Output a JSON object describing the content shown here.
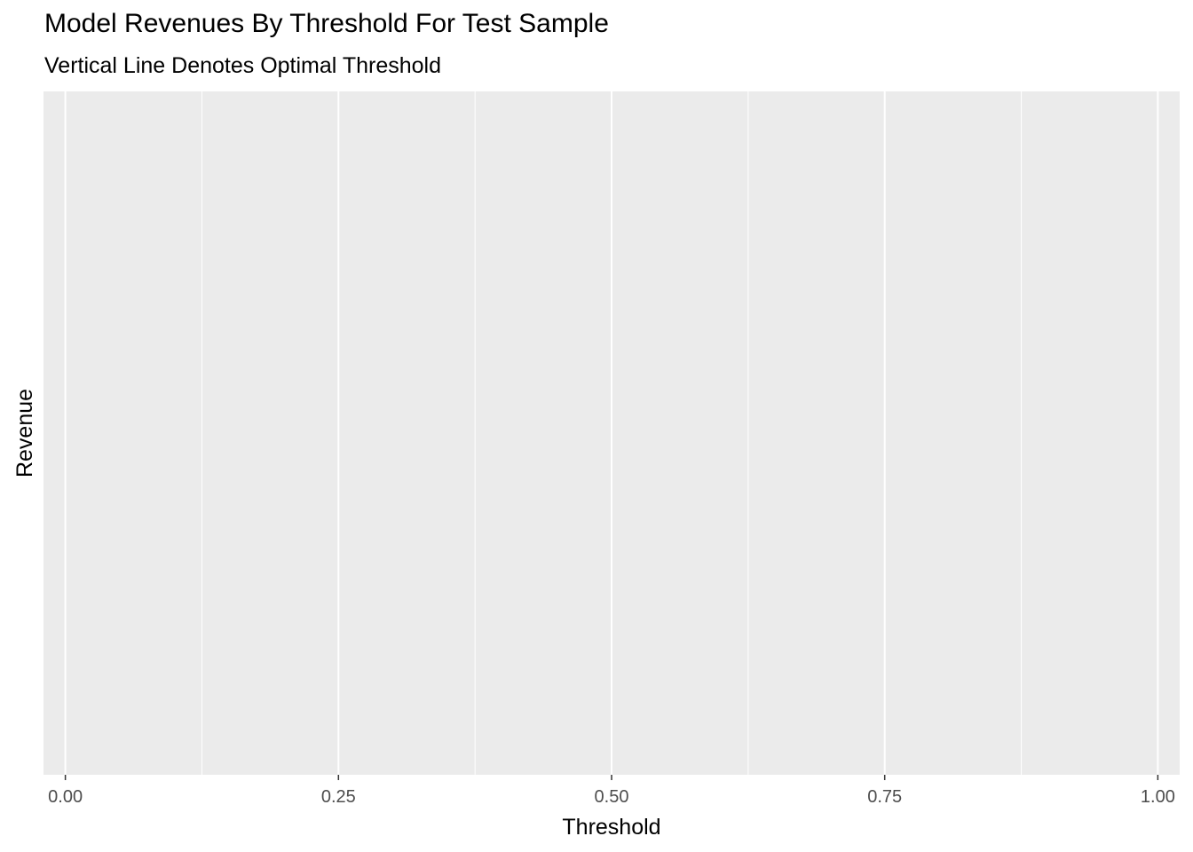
{
  "chart_data": {
    "type": "line",
    "title": "Model Revenues By Threshold For Test Sample",
    "subtitle": "Vertical Line Denotes Optimal Threshold",
    "xlabel": "Threshold",
    "ylabel": "Revenue",
    "xlim": [
      -0.02,
      1.02
    ],
    "x_ticks": [
      0.0,
      0.25,
      0.5,
      0.75,
      1.0
    ],
    "x_tick_labels": [
      "0.00",
      "0.25",
      "0.50",
      "0.75",
      "1.00"
    ],
    "x_minor_ticks": [
      0.125,
      0.375,
      0.625,
      0.875
    ],
    "series": [],
    "grid": true,
    "panel_background": "#ebebeb",
    "grid_color": "#ffffff"
  }
}
